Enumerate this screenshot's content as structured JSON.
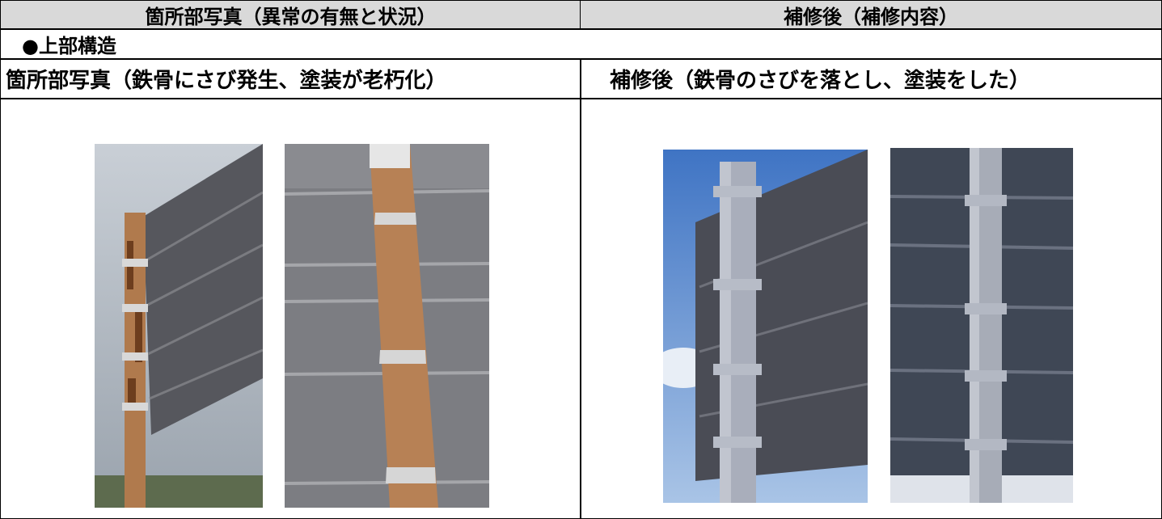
{
  "table": {
    "header": [
      "箇所部写真（異常の有無と状況）",
      "補修後（補修内容）"
    ],
    "section": "●上部構造",
    "rows": [
      [
        "箇所部写真（鉄骨にさび発生、塗装が老朽化）",
        "補修後（鉄骨のさびを落とし、塗装をした）"
      ]
    ]
  }
}
